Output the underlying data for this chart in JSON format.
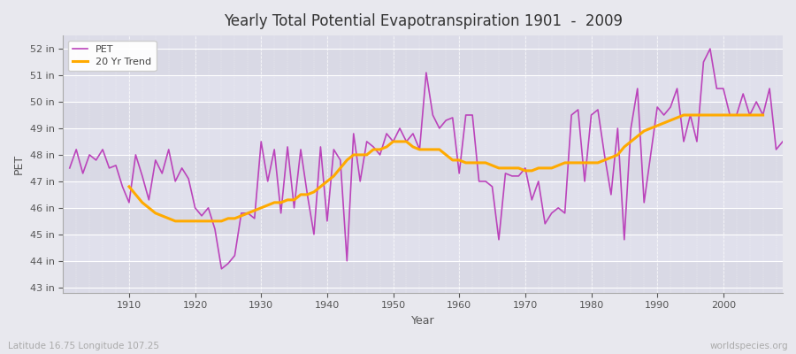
{
  "title": "Yearly Total Potential Evapotranspiration 1901  -  2009",
  "xlabel": "Year",
  "ylabel": "PET",
  "subtitle": "Latitude 16.75 Longitude 107.25",
  "watermark": "worldspecies.org",
  "pet_color": "#bb44bb",
  "trend_color": "#ffaa00",
  "background_color": "#e8e8ee",
  "plot_bg_color": "#dcdce8",
  "ylim": [
    42.8,
    52.5
  ],
  "yticks": [
    43,
    44,
    45,
    46,
    47,
    48,
    49,
    50,
    51,
    52
  ],
  "ytick_labels": [
    "43 in",
    "44 in",
    "45 in",
    "46 in",
    "47 in",
    "48 in",
    "49 in",
    "50 in",
    "51 in",
    "52 in"
  ],
  "xlim": [
    1900,
    2009
  ],
  "xticks": [
    1910,
    1920,
    1930,
    1940,
    1950,
    1960,
    1970,
    1980,
    1990,
    2000
  ],
  "years": [
    1901,
    1902,
    1903,
    1904,
    1905,
    1906,
    1907,
    1908,
    1909,
    1910,
    1911,
    1912,
    1913,
    1914,
    1915,
    1916,
    1917,
    1918,
    1919,
    1920,
    1921,
    1922,
    1923,
    1924,
    1925,
    1926,
    1927,
    1928,
    1929,
    1930,
    1931,
    1932,
    1933,
    1934,
    1935,
    1936,
    1937,
    1938,
    1939,
    1940,
    1941,
    1942,
    1943,
    1944,
    1945,
    1946,
    1947,
    1948,
    1949,
    1950,
    1951,
    1952,
    1953,
    1954,
    1955,
    1956,
    1957,
    1958,
    1959,
    1960,
    1961,
    1962,
    1963,
    1964,
    1965,
    1966,
    1967,
    1968,
    1969,
    1970,
    1971,
    1972,
    1973,
    1974,
    1975,
    1976,
    1977,
    1978,
    1979,
    1980,
    1981,
    1982,
    1983,
    1984,
    1985,
    1986,
    1987,
    1988,
    1989,
    1990,
    1991,
    1992,
    1993,
    1994,
    1995,
    1996,
    1997,
    1998,
    1999,
    2000,
    2001,
    2002,
    2003,
    2004,
    2005,
    2006,
    2007,
    2008,
    2009
  ],
  "pet_values": [
    47.5,
    48.2,
    47.3,
    48.0,
    47.8,
    48.2,
    47.5,
    47.6,
    46.8,
    46.2,
    48.0,
    47.2,
    46.3,
    47.8,
    47.3,
    48.2,
    47.0,
    47.5,
    47.1,
    46.0,
    45.7,
    46.0,
    45.2,
    43.7,
    43.9,
    44.2,
    45.8,
    45.8,
    45.6,
    48.5,
    47.0,
    48.2,
    45.8,
    48.3,
    46.0,
    48.2,
    46.5,
    45.0,
    48.3,
    45.5,
    48.2,
    47.8,
    44.0,
    48.8,
    47.0,
    48.5,
    48.3,
    48.0,
    48.8,
    48.5,
    49.0,
    48.5,
    48.8,
    48.2,
    51.1,
    49.5,
    49.0,
    49.3,
    49.4,
    47.3,
    49.5,
    49.5,
    47.0,
    47.0,
    46.8,
    44.8,
    47.3,
    47.2,
    47.2,
    47.5,
    46.3,
    47.0,
    45.4,
    45.8,
    46.0,
    45.8,
    49.5,
    49.7,
    47.0,
    49.5,
    49.7,
    48.0,
    46.5,
    49.0,
    44.8,
    49.0,
    50.5,
    46.2,
    48.0,
    49.8,
    49.5,
    49.8,
    50.5,
    48.5,
    49.5,
    48.5,
    51.5,
    52.0,
    50.5,
    50.5,
    49.5,
    49.5,
    50.3,
    49.5,
    50.0,
    49.5,
    50.5,
    48.2,
    48.5
  ],
  "trend_values": [
    null,
    null,
    null,
    null,
    null,
    null,
    null,
    null,
    null,
    46.8,
    46.5,
    46.2,
    46.0,
    45.8,
    45.7,
    45.6,
    45.5,
    45.5,
    45.5,
    45.5,
    45.5,
    45.5,
    45.5,
    45.5,
    45.6,
    45.6,
    45.7,
    45.8,
    45.9,
    46.0,
    46.1,
    46.2,
    46.2,
    46.3,
    46.3,
    46.5,
    46.5,
    46.6,
    46.8,
    47.0,
    47.2,
    47.5,
    47.8,
    48.0,
    48.0,
    48.0,
    48.2,
    48.2,
    48.3,
    48.5,
    48.5,
    48.5,
    48.3,
    48.2,
    48.2,
    48.2,
    48.2,
    48.0,
    47.8,
    47.8,
    47.7,
    47.7,
    47.7,
    47.7,
    47.6,
    47.5,
    47.5,
    47.5,
    47.5,
    47.4,
    47.4,
    47.5,
    47.5,
    47.5,
    47.6,
    47.7,
    47.7,
    47.7,
    47.7,
    47.7,
    47.7,
    47.8,
    47.9,
    48.0,
    48.3,
    48.5,
    48.7,
    48.9,
    49.0,
    49.1,
    49.2,
    49.3,
    49.4,
    49.5,
    49.5,
    49.5,
    49.5,
    49.5,
    49.5,
    49.5,
    49.5,
    49.5,
    49.5,
    49.5,
    49.5,
    49.5,
    null,
    null
  ]
}
